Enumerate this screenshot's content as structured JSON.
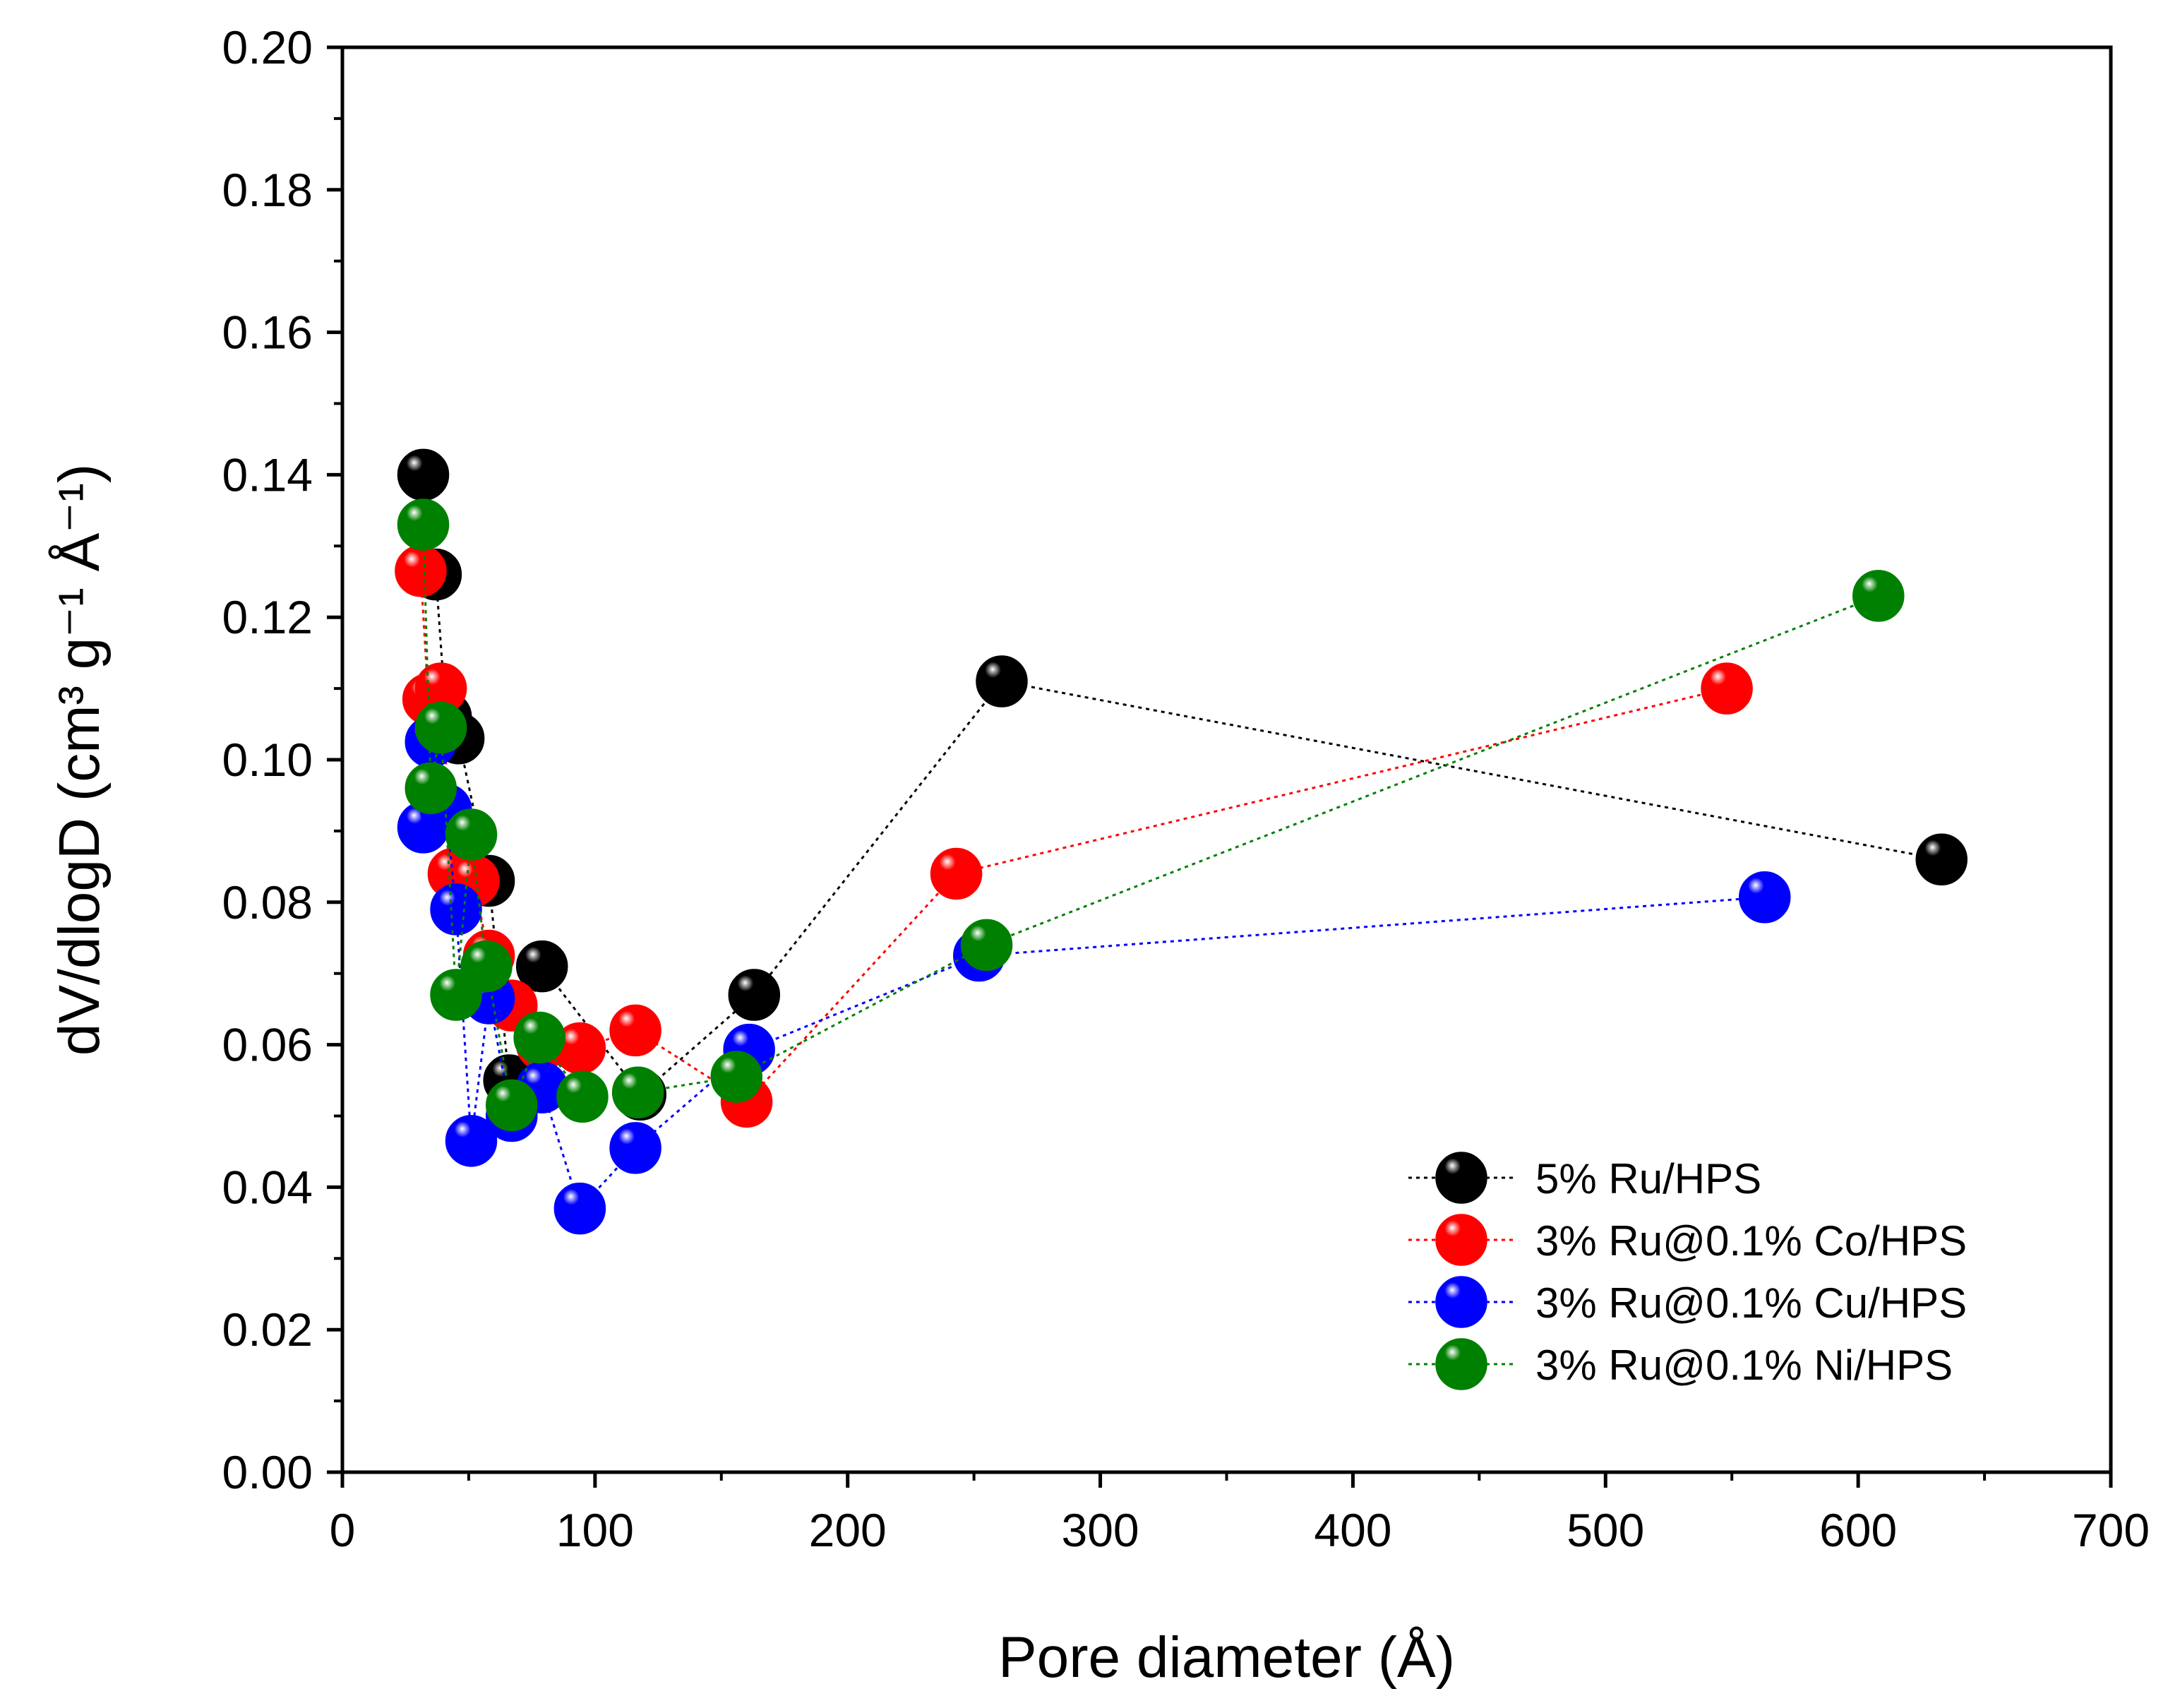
{
  "chart_data": {
    "type": "scatter",
    "title": "",
    "xlabel": "Pore diameter (Å)",
    "ylabel": "dV/dlogD (cm³ g⁻¹ Å⁻¹)",
    "xlim": [
      0,
      700
    ],
    "ylim": [
      0,
      0.2
    ],
    "xticks": [
      0,
      100,
      200,
      300,
      400,
      500,
      600,
      700
    ],
    "xtick_labels": [
      "0",
      "100",
      "200",
      "300",
      "400",
      "500",
      "600",
      "700"
    ],
    "yticks": [
      0,
      0.02,
      0.04,
      0.06,
      0.08,
      0.1,
      0.12,
      0.14,
      0.16,
      0.18,
      0.2
    ],
    "ytick_labels": [
      "0.00",
      "0.02",
      "0.04",
      "0.06",
      "0.08",
      "0.10",
      "0.12",
      "0.14",
      "0.16",
      "0.18",
      "0.20"
    ],
    "x_minor_step": 50,
    "y_minor_step": 0.01,
    "grid": false,
    "legend_position": "bottom-right",
    "line_style": "dotted",
    "series": [
      {
        "name": "5% Ru/HPS",
        "color": "#000000",
        "x": [
          32,
          37,
          41,
          46,
          58,
          66,
          79,
          118,
          163,
          261,
          633
        ],
        "y": [
          0.14,
          0.126,
          0.106,
          0.103,
          0.083,
          0.055,
          0.071,
          0.053,
          0.067,
          0.111,
          0.086
        ]
      },
      {
        "name": "3% Ru@0.1% Co/HPS",
        "color": "#ff0000",
        "x": [
          31,
          34,
          39,
          44,
          52,
          58,
          67,
          79,
          94,
          116,
          160,
          243,
          548
        ],
        "y": [
          0.1265,
          0.1085,
          0.11,
          0.084,
          0.083,
          0.0725,
          0.0655,
          0.06,
          0.0595,
          0.062,
          0.052,
          0.084,
          0.11
        ]
      },
      {
        "name": "3% Ru@0.1% Cu/HPS",
        "color": "#0000ff",
        "x": [
          32,
          35,
          41,
          45,
          51,
          58,
          67,
          79,
          94,
          116,
          161,
          252,
          563
        ],
        "y": [
          0.0905,
          0.1025,
          0.093,
          0.079,
          0.0465,
          0.0665,
          0.05,
          0.054,
          0.037,
          0.0455,
          0.0593,
          0.0725,
          0.0807
        ]
      },
      {
        "name": "3% Ru@0.1% Ni/HPS",
        "color": "#008000",
        "x": [
          32,
          35,
          39,
          45,
          51,
          57,
          67,
          78,
          95,
          117,
          156,
          255,
          608
        ],
        "y": [
          0.133,
          0.096,
          0.1045,
          0.067,
          0.0895,
          0.071,
          0.0515,
          0.061,
          0.0527,
          0.0533,
          0.0555,
          0.074,
          0.123
        ]
      }
    ]
  }
}
